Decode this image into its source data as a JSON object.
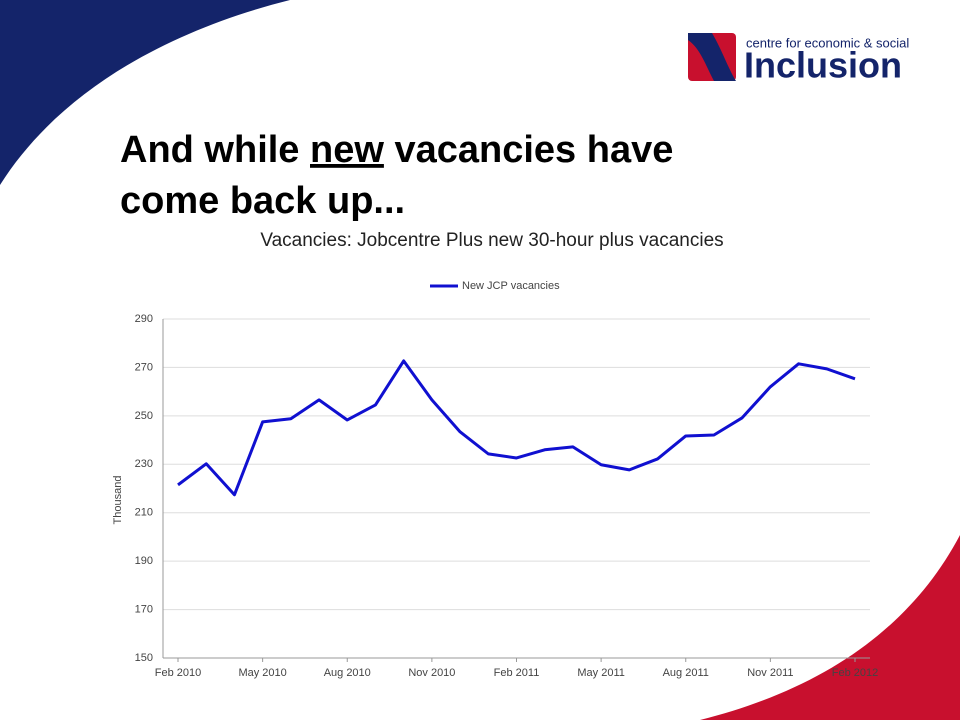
{
  "logo": {
    "tagline": "centre for economic & social",
    "name": "Inclusion"
  },
  "slide_title": {
    "line_1": [
      "And while ",
      "new",
      " vacancies have"
    ],
    "line_2": "come back up..."
  },
  "chart_data": {
    "type": "line",
    "title": "Vacancies: Jobcentre Plus new 30-hour plus vacancies",
    "y_label": "Thousand",
    "categories": [
      "Feb 2010",
      null,
      null,
      "May 2010",
      null,
      null,
      "Aug 2010",
      null,
      null,
      "Nov 2010",
      null,
      null,
      "Feb 2011",
      null,
      null,
      "May 2011",
      null,
      null,
      "Aug 2011",
      null,
      null,
      "Nov 2011",
      null,
      null,
      "Feb 2012"
    ],
    "series": [
      {
        "name": "New JCP vacancies",
        "color": "#1010d0",
        "values": [
          221.5,
          230.2,
          217.4,
          247.5,
          248.8,
          256.6,
          248.3,
          254.5,
          272.7,
          256.6,
          243.4,
          234.3,
          232.6,
          236,
          237.2,
          229.8,
          227.7,
          232.2,
          241.7,
          242.1,
          249.2,
          262,
          271.5,
          269.4,
          265.3
        ]
      }
    ],
    "ylim": [
      150,
      290
    ],
    "yticks": [
      150,
      170,
      190,
      210,
      230,
      250,
      270,
      290
    ],
    "grid": true,
    "legend": "top"
  }
}
